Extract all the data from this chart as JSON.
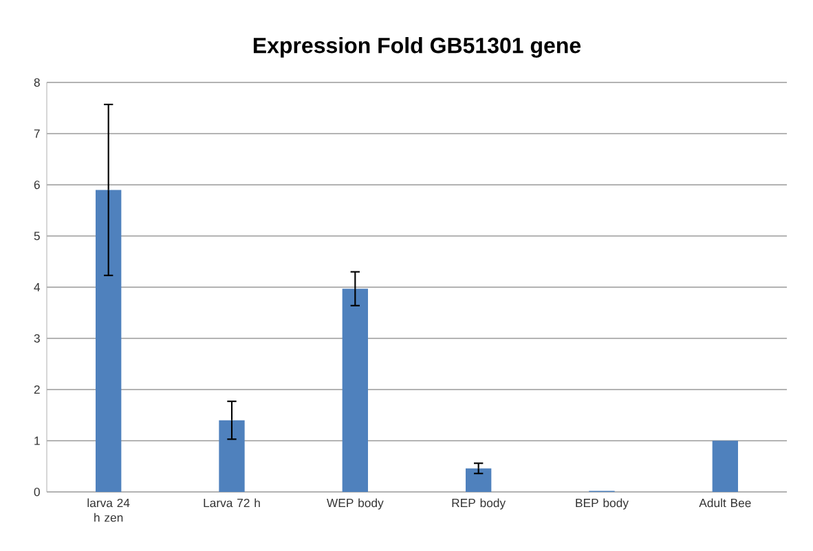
{
  "chart_data": {
    "type": "bar",
    "title": "Expression Fold GB51301 gene",
    "categories": [
      "larva 24 h zen",
      "Larva 72 h",
      "WEP body",
      "REP body",
      "BEP body",
      "Adult Bee"
    ],
    "values": [
      5.9,
      1.4,
      3.97,
      0.46,
      0.02,
      1.0
    ],
    "errors": [
      1.67,
      0.37,
      0.33,
      0.1,
      null,
      null
    ],
    "color": "#4f81bd",
    "ylim": [
      0,
      8
    ],
    "yticks": [
      0,
      1,
      2,
      3,
      4,
      5,
      6,
      7,
      8
    ],
    "grid": "y"
  }
}
